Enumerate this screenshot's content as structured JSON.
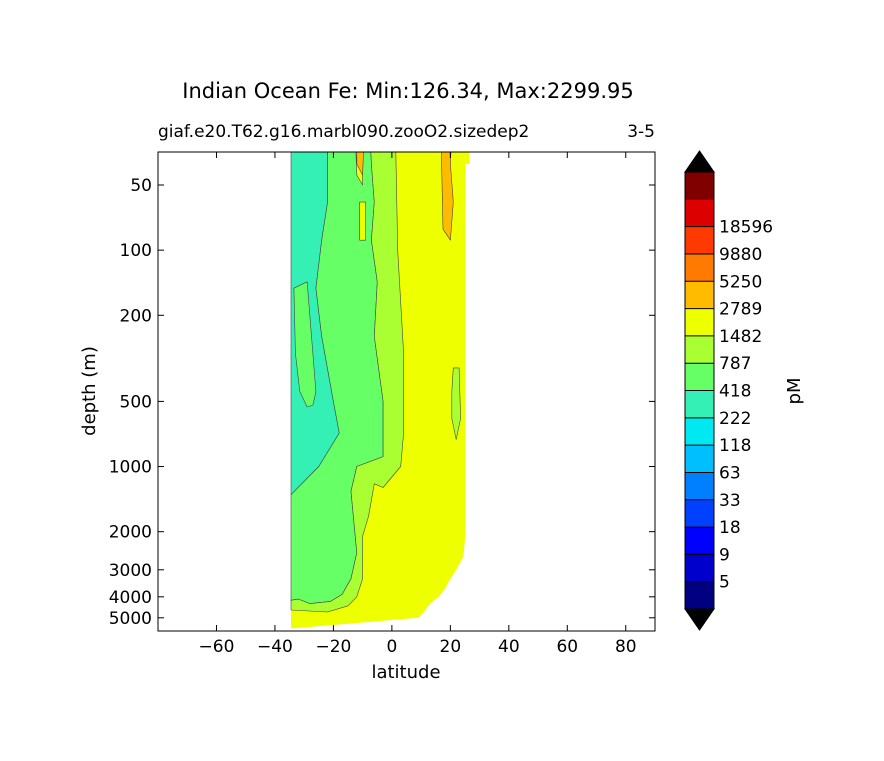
{
  "chart_data": {
    "type": "contour",
    "title": "Indian Ocean Fe: Min:126.34, Max:2299.95",
    "subtitle_left": "giaf.e20.T62.g16.marbl090.zooO2.sizedep2",
    "subtitle_right": "3-5",
    "xlabel": "latitude",
    "ylabel": "depth (m)",
    "xlim": [
      -80,
      90
    ],
    "x_ticks": [
      {
        "value": -60,
        "label": "−60"
      },
      {
        "value": -40,
        "label": "−40"
      },
      {
        "value": -20,
        "label": "−20"
      },
      {
        "value": 0,
        "label": "0"
      },
      {
        "value": 20,
        "label": "20"
      },
      {
        "value": 40,
        "label": "40"
      },
      {
        "value": 60,
        "label": "60"
      },
      {
        "value": 80,
        "label": "80"
      }
    ],
    "y_ticks": [
      {
        "value": 50,
        "label": "50"
      },
      {
        "value": 100,
        "label": "100"
      },
      {
        "value": 200,
        "label": "200"
      },
      {
        "value": 500,
        "label": "500"
      },
      {
        "value": 1000,
        "label": "1000"
      },
      {
        "value": 2000,
        "label": "2000"
      },
      {
        "value": 3000,
        "label": "3000"
      },
      {
        "value": 4000,
        "label": "4000"
      },
      {
        "value": 5000,
        "label": "5000"
      }
    ],
    "colorbar": {
      "label": "pM",
      "levels": [
        "5",
        "9",
        "18",
        "33",
        "63",
        "118",
        "222",
        "418",
        "787",
        "1482",
        "2789",
        "5250",
        "9880",
        "18596"
      ],
      "colors": [
        "#000080",
        "#0000cc",
        "#0000ff",
        "#0040ff",
        "#0080ff",
        "#00bfff",
        "#00e8f0",
        "#34f0b4",
        "#66ff66",
        "#aaff33",
        "#eeff00",
        "#ffbb00",
        "#ff7a00",
        "#ff3a00",
        "#dd0000",
        "#800000"
      ],
      "extend": "both",
      "under_color": "#000000",
      "over_color": "#000000"
    },
    "regions": [
      {
        "name": "118-222",
        "color": "#34f0b4",
        "points": [
          [
            -34.5,
            20
          ],
          [
            -22,
            20
          ],
          [
            -22,
            60
          ],
          [
            -24,
            90
          ],
          [
            -26,
            150
          ],
          [
            -24,
            250
          ],
          [
            -20,
            500
          ],
          [
            -18,
            700
          ],
          [
            -25,
            1000
          ],
          [
            -34.5,
            1350
          ]
        ]
      },
      {
        "name": "222-418 patch",
        "color": "#66ff66",
        "points": [
          [
            -33.5,
            150
          ],
          [
            -29,
            140
          ],
          [
            -27.5,
            250
          ],
          [
            -26,
            450
          ],
          [
            -27,
            520
          ],
          [
            -29,
            530
          ],
          [
            -31.5,
            450
          ],
          [
            -33,
            300
          ]
        ]
      },
      {
        "name": "222-418",
        "color": "#66ff66",
        "points": [
          [
            -22,
            20
          ],
          [
            -8,
            20
          ],
          [
            -7,
            40
          ],
          [
            -6,
            60
          ],
          [
            -7,
            90
          ],
          [
            -5,
            140
          ],
          [
            -6,
            250
          ],
          [
            -3,
            500
          ],
          [
            -3,
            900
          ],
          [
            -12,
            1000
          ],
          [
            -14,
            1300
          ],
          [
            -12,
            2500
          ],
          [
            -14,
            3300
          ],
          [
            -17,
            3900
          ],
          [
            -21,
            4200
          ],
          [
            -28,
            4300
          ],
          [
            -32,
            4100
          ],
          [
            -34.5,
            4150
          ],
          [
            -34.5,
            1350
          ],
          [
            -25,
            1000
          ],
          [
            -18,
            700
          ],
          [
            -20,
            500
          ],
          [
            -24,
            250
          ],
          [
            -26,
            150
          ],
          [
            -24,
            90
          ],
          [
            -22,
            60
          ]
        ]
      },
      {
        "name": "418-787",
        "color": "#aaff33",
        "points": [
          [
            -8,
            20
          ],
          [
            1,
            20
          ],
          [
            2,
            100
          ],
          [
            4,
            300
          ],
          [
            4,
            700
          ],
          [
            3,
            1000
          ],
          [
            -3,
            1250
          ],
          [
            -6,
            1200
          ],
          [
            -8,
            1700
          ],
          [
            -10,
            2100
          ],
          [
            -10,
            3300
          ],
          [
            -12,
            4000
          ],
          [
            -15,
            4400
          ],
          [
            -22,
            4700
          ],
          [
            -34.5,
            4600
          ],
          [
            -34.5,
            4150
          ],
          [
            -32,
            4100
          ],
          [
            -28,
            4300
          ],
          [
            -21,
            4200
          ],
          [
            -17,
            3900
          ],
          [
            -14,
            3300
          ],
          [
            -12,
            2500
          ],
          [
            -14,
            1300
          ],
          [
            -12,
            1000
          ],
          [
            -3,
            900
          ],
          [
            -3,
            500
          ],
          [
            -6,
            250
          ],
          [
            -5,
            140
          ],
          [
            -7,
            90
          ],
          [
            -6,
            60
          ],
          [
            -7,
            40
          ]
        ]
      },
      {
        "name": "patch-418-787-a",
        "color": "#aaff33",
        "points": [
          [
            17,
            20
          ],
          [
            21,
            20
          ],
          [
            20,
            35
          ],
          [
            18,
            32
          ]
        ]
      },
      {
        "name": "patch-418-787-b",
        "color": "#aaff33",
        "points": [
          [
            21,
            350
          ],
          [
            23,
            350
          ],
          [
            23.5,
            600
          ],
          [
            22,
            750
          ],
          [
            20.5,
            600
          ],
          [
            20.5,
            450
          ]
        ]
      },
      {
        "name": "patch-787-1482-a",
        "color": "#eeff00",
        "points": [
          [
            -13,
            20
          ],
          [
            -10,
            20
          ],
          [
            -10,
            50
          ],
          [
            -12,
            45
          ]
        ]
      },
      {
        "name": "patch-787-1482-b",
        "color": "#eeff00",
        "points": [
          [
            -11,
            60
          ],
          [
            -9,
            60
          ],
          [
            -9,
            90
          ],
          [
            -11,
            90
          ]
        ]
      },
      {
        "name": "patch-1482-2789-a",
        "color": "#ffbb00",
        "points": [
          [
            -12,
            20
          ],
          [
            -9,
            20
          ],
          [
            -10,
            45
          ],
          [
            -12,
            40
          ]
        ]
      },
      {
        "name": "patch-1482-2789-b",
        "color": "#ffbb00",
        "points": [
          [
            17,
            20
          ],
          [
            21,
            20
          ],
          [
            20,
            40
          ],
          [
            21,
            60
          ],
          [
            20,
            90
          ],
          [
            17.5,
            80
          ],
          [
            17,
            40
          ]
        ]
      }
    ]
  }
}
